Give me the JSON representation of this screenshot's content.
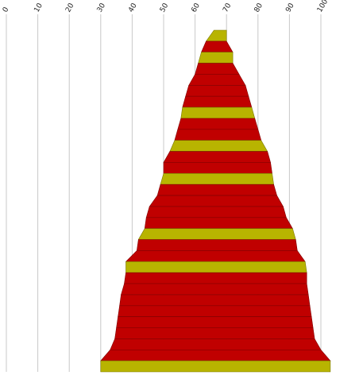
{
  "chart_data": {
    "type": "bar",
    "orientation": "horizontal",
    "layout": "funnel",
    "title": "",
    "xlabel": "",
    "ylabel": "",
    "xlim": [
      0,
      100
    ],
    "x_ticks": [
      "0",
      "10",
      "20",
      "30",
      "40",
      "50",
      "60",
      "70",
      "80",
      "90",
      "100"
    ],
    "grid": true,
    "legend": "none",
    "bands": [
      {
        "start": 66,
        "end": 70,
        "color": "#b8b400"
      },
      {
        "start": 63.5,
        "end": 70,
        "color": "#c00000"
      },
      {
        "start": 62,
        "end": 72,
        "color": "#b8b400"
      },
      {
        "start": 61,
        "end": 72,
        "color": "#c00000"
      },
      {
        "start": 60,
        "end": 74,
        "color": "#c00000"
      },
      {
        "start": 58,
        "end": 76,
        "color": "#c00000"
      },
      {
        "start": 57,
        "end": 77,
        "color": "#c00000"
      },
      {
        "start": 56,
        "end": 78,
        "color": "#b8b400"
      },
      {
        "start": 55.5,
        "end": 79,
        "color": "#c00000"
      },
      {
        "start": 54.5,
        "end": 80,
        "color": "#c00000"
      },
      {
        "start": 53.5,
        "end": 81,
        "color": "#b8b400"
      },
      {
        "start": 52,
        "end": 83,
        "color": "#c00000"
      },
      {
        "start": 50,
        "end": 84,
        "color": "#c00000"
      },
      {
        "start": 50,
        "end": 84.5,
        "color": "#b8b400"
      },
      {
        "start": 49,
        "end": 85,
        "color": "#c00000"
      },
      {
        "start": 48,
        "end": 86,
        "color": "#c00000"
      },
      {
        "start": 45.5,
        "end": 88,
        "color": "#c00000"
      },
      {
        "start": 44.5,
        "end": 89,
        "color": "#c00000"
      },
      {
        "start": 44,
        "end": 91,
        "color": "#b8b400"
      },
      {
        "start": 42,
        "end": 92,
        "color": "#c00000"
      },
      {
        "start": 41.5,
        "end": 92.5,
        "color": "#c00000"
      },
      {
        "start": 38,
        "end": 95,
        "color": "#b8b400"
      },
      {
        "start": 38,
        "end": 95.5,
        "color": "#c00000"
      },
      {
        "start": 37.5,
        "end": 95.5,
        "color": "#c00000"
      },
      {
        "start": 36.5,
        "end": 96,
        "color": "#c00000"
      },
      {
        "start": 36,
        "end": 96.5,
        "color": "#c00000"
      },
      {
        "start": 35.5,
        "end": 97,
        "color": "#c00000"
      },
      {
        "start": 35,
        "end": 97.5,
        "color": "#c00000"
      },
      {
        "start": 34.5,
        "end": 98,
        "color": "#c00000"
      },
      {
        "start": 33,
        "end": 100,
        "color": "#c00000"
      },
      {
        "start": 30,
        "end": 103,
        "color": "#b8b400"
      }
    ],
    "band_colors": {
      "primary": "#c00000",
      "secondary": "#b8b400"
    }
  }
}
